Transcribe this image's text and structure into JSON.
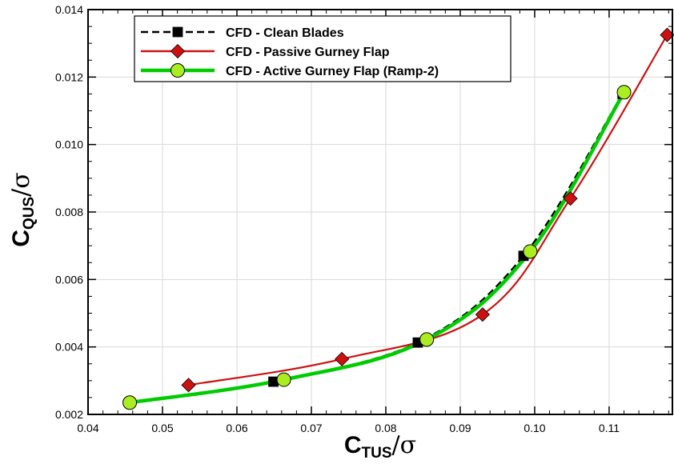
{
  "chart_data": {
    "type": "line",
    "title": "",
    "xlabel": {
      "main": "C",
      "sub": "TUS",
      "suffix": "/σ"
    },
    "ylabel": {
      "main": "C",
      "sub": "QUS",
      "suffix": "/σ"
    },
    "xlim": [
      0.04,
      0.1185
    ],
    "ylim": [
      0.002,
      0.014
    ],
    "xticks": [
      0.04,
      0.05,
      0.06,
      0.07,
      0.08,
      0.09,
      0.1,
      0.11
    ],
    "xtick_labels": [
      "0.04",
      "0.05",
      "0.06",
      "0.07",
      "0.08",
      "0.09",
      "0.10",
      "0.11"
    ],
    "yticks": [
      0.002,
      0.004,
      0.006,
      0.008,
      0.01,
      0.012,
      0.014
    ],
    "ytick_labels": [
      "0.002",
      "0.004",
      "0.006",
      "0.008",
      "0.010",
      "0.012",
      "0.014"
    ],
    "grid": true,
    "legend_position": "top-left",
    "series": [
      {
        "name": "CFD - Clean Blades",
        "color": "#000000",
        "marker": "square",
        "line_style": "dashed",
        "marker_color": "#000000",
        "x": [
          0.0649,
          0.0843,
          0.0985,
          0.1118
        ],
        "y": [
          0.00297,
          0.00413,
          0.0067,
          0.0115
        ]
      },
      {
        "name": "CFD - Passive Gurney Flap",
        "color": "#cc1111",
        "marker": "diamond",
        "line_style": "solid",
        "marker_color": "#cc1111",
        "x": [
          0.0535,
          0.0741,
          0.093,
          0.1048,
          0.1178
        ],
        "y": [
          0.00287,
          0.00364,
          0.00496,
          0.0084,
          0.01325
        ]
      },
      {
        "name": "CFD - Active Gurney Flap (Ramp-2)",
        "color": "#00cc00",
        "marker": "circle",
        "line_style": "solid",
        "marker_color": "#aaee22",
        "x": [
          0.0456,
          0.0663,
          0.0855,
          0.0994,
          0.112
        ],
        "y": [
          0.00235,
          0.00303,
          0.00422,
          0.00683,
          0.01155
        ]
      }
    ]
  }
}
